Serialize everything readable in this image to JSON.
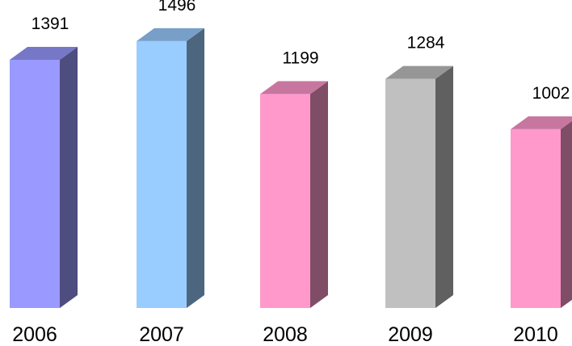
{
  "chart_data": {
    "type": "bar",
    "style": "3d",
    "categories": [
      "2006",
      "2007",
      "2008",
      "2009",
      "2010"
    ],
    "values": [
      1391,
      1496,
      1199,
      1284,
      1002
    ],
    "colors": [
      "#9999ff",
      "#99ccff",
      "#ff99cc",
      "#c0c0c0",
      "#ff99cc"
    ],
    "title": "",
    "xlabel": "",
    "ylabel": "",
    "ylim": [
      0,
      1580
    ],
    "grid": false,
    "legend": "none"
  }
}
